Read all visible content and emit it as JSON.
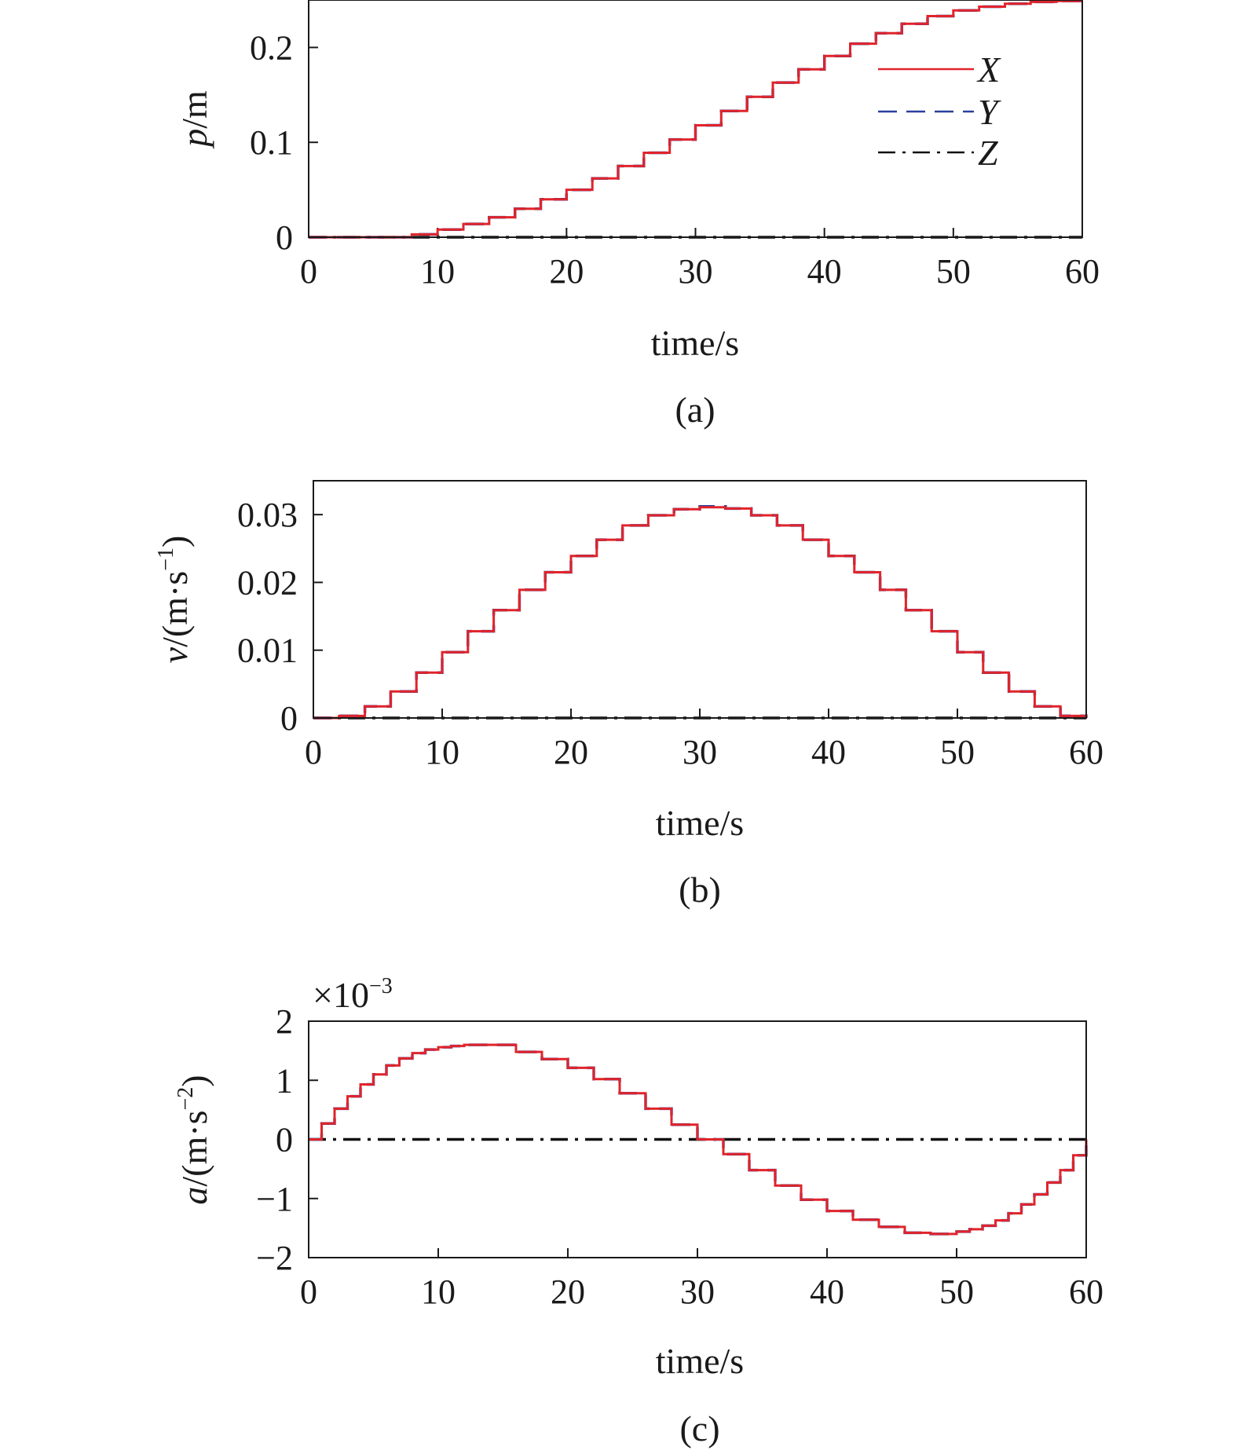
{
  "colors": {
    "X": "#e0242b",
    "Y": "#2a3f9e",
    "Z": "#111111"
  },
  "chart_data": [
    {
      "type": "line",
      "panel_label": "(a)",
      "ylabel": {
        "var": "p",
        "rest": "/m"
      },
      "xlabel": "time/s",
      "xlim": [
        0,
        60
      ],
      "ylim": [
        0,
        0.25
      ],
      "xticks": [
        0,
        10,
        20,
        30,
        40,
        50,
        60
      ],
      "xtick_labels": [
        "0",
        "10",
        "20",
        "30",
        "40",
        "50",
        "60"
      ],
      "yticks": [
        0,
        0.1,
        0.2
      ],
      "ytick_labels": [
        "0",
        "0.1",
        "0.2"
      ],
      "grid": false,
      "legend": {
        "position": "top-right",
        "entries": [
          "X",
          "Y",
          "Z"
        ]
      },
      "series": [
        {
          "name": "X",
          "style": "solid",
          "stepped": true,
          "x": [
            0,
            6,
            8,
            10,
            12,
            14,
            16,
            18,
            20,
            22,
            24,
            26,
            28,
            30,
            32,
            34,
            36,
            38,
            40,
            42,
            44,
            46,
            48,
            50,
            52,
            54,
            56,
            58,
            60
          ],
          "y": [
            0,
            0,
            0.003,
            0.008,
            0.014,
            0.021,
            0.03,
            0.04,
            0.05,
            0.062,
            0.075,
            0.089,
            0.103,
            0.118,
            0.133,
            0.148,
            0.163,
            0.177,
            0.191,
            0.204,
            0.215,
            0.225,
            0.233,
            0.239,
            0.243,
            0.246,
            0.248,
            0.249,
            0.249
          ]
        },
        {
          "name": "Y",
          "style": "dashed",
          "stepped": true,
          "x": [
            0,
            6,
            8,
            10,
            12,
            14,
            16,
            18,
            20,
            22,
            24,
            26,
            28,
            30,
            32,
            34,
            36,
            38,
            40,
            42,
            44,
            46,
            48,
            50,
            52,
            54,
            56,
            58,
            60
          ],
          "y": [
            0,
            0,
            0.003,
            0.008,
            0.014,
            0.021,
            0.03,
            0.04,
            0.05,
            0.062,
            0.075,
            0.089,
            0.103,
            0.118,
            0.133,
            0.148,
            0.163,
            0.177,
            0.191,
            0.204,
            0.215,
            0.225,
            0.233,
            0.239,
            0.243,
            0.246,
            0.248,
            0.249,
            0.249
          ]
        },
        {
          "name": "Z",
          "style": "dashdot",
          "stepped": false,
          "x": [
            0,
            60
          ],
          "y": [
            0,
            0
          ]
        }
      ]
    },
    {
      "type": "line",
      "panel_label": "(b)",
      "ylabel": {
        "var": "v",
        "rest": "/(m·s",
        "sup": "−1",
        "close": ")"
      },
      "xlabel": "time/s",
      "xlim": [
        0,
        60
      ],
      "ylim": [
        0,
        0.035
      ],
      "xticks": [
        0,
        10,
        20,
        30,
        40,
        50,
        60
      ],
      "xtick_labels": [
        "0",
        "10",
        "20",
        "30",
        "40",
        "50",
        "60"
      ],
      "yticks": [
        0,
        0.01,
        0.02,
        0.03
      ],
      "ytick_labels": [
        "0",
        "0.01",
        "0.02",
        "0.03"
      ],
      "grid": false,
      "series": [
        {
          "name": "X",
          "style": "solid",
          "stepped": true,
          "x": [
            0,
            2,
            4,
            6,
            8,
            10,
            12,
            14,
            16,
            18,
            20,
            22,
            24,
            26,
            28,
            30,
            32,
            34,
            36,
            38,
            40,
            42,
            44,
            46,
            48,
            50,
            52,
            54,
            56,
            58,
            60
          ],
          "y": [
            0,
            0.0003,
            0.0017,
            0.0039,
            0.0067,
            0.0097,
            0.0128,
            0.0159,
            0.0189,
            0.0215,
            0.0239,
            0.0263,
            0.0284,
            0.0299,
            0.0308,
            0.0311,
            0.0309,
            0.0299,
            0.0284,
            0.0263,
            0.0239,
            0.0215,
            0.0189,
            0.0159,
            0.0128,
            0.0097,
            0.0067,
            0.0039,
            0.0017,
            0.0003,
            0
          ]
        },
        {
          "name": "Y",
          "style": "dashed",
          "stepped": true,
          "x": [
            0,
            2,
            4,
            6,
            8,
            10,
            12,
            14,
            16,
            18,
            20,
            22,
            24,
            26,
            28,
            30,
            32,
            34,
            36,
            38,
            40,
            42,
            44,
            46,
            48,
            50,
            52,
            54,
            56,
            58,
            60
          ],
          "y": [
            0,
            0.0003,
            0.0017,
            0.0039,
            0.0067,
            0.0097,
            0.0128,
            0.0159,
            0.0189,
            0.0215,
            0.0239,
            0.0263,
            0.0284,
            0.0299,
            0.0308,
            0.0312,
            0.0309,
            0.0299,
            0.0284,
            0.0263,
            0.0239,
            0.0215,
            0.0189,
            0.0159,
            0.0128,
            0.0097,
            0.0067,
            0.0039,
            0.0017,
            0.0003,
            0
          ]
        },
        {
          "name": "Z",
          "style": "dashdot",
          "stepped": false,
          "x": [
            0,
            60
          ],
          "y": [
            0,
            0
          ]
        }
      ]
    },
    {
      "type": "line",
      "panel_label": "(c)",
      "ylabel": {
        "var": "a",
        "rest": "/(m·s",
        "sup": "−2",
        "close": ")"
      },
      "xlabel": "time/s",
      "scale_note": {
        "base": "×10",
        "sup": "−3"
      },
      "xlim": [
        0,
        60
      ],
      "ylim": [
        -2,
        2
      ],
      "xticks": [
        0,
        10,
        20,
        30,
        40,
        50,
        60
      ],
      "xtick_labels": [
        "0",
        "10",
        "20",
        "30",
        "40",
        "50",
        "60"
      ],
      "yticks": [
        -2,
        -1,
        0,
        1,
        2
      ],
      "ytick_labels": [
        "−2",
        "−1",
        "0",
        "1",
        "2"
      ],
      "grid": false,
      "series": [
        {
          "name": "X",
          "style": "solid",
          "stepped": true,
          "x": [
            0,
            1,
            2,
            3,
            4,
            5,
            6,
            7,
            8,
            9,
            10,
            11,
            12,
            14,
            16,
            18,
            20,
            22,
            24,
            26,
            28,
            30,
            32,
            34,
            36,
            38,
            40,
            42,
            44,
            46,
            48,
            49,
            50,
            51,
            52,
            53,
            54,
            55,
            56,
            57,
            58,
            59,
            60
          ],
          "y": [
            0,
            0.27,
            0.52,
            0.73,
            0.93,
            1.1,
            1.25,
            1.37,
            1.46,
            1.52,
            1.56,
            1.58,
            1.6,
            1.6,
            1.48,
            1.36,
            1.21,
            1.02,
            0.78,
            0.52,
            0.25,
            0,
            -0.25,
            -0.52,
            -0.78,
            -1.02,
            -1.21,
            -1.36,
            -1.48,
            -1.58,
            -1.6,
            -1.6,
            -1.56,
            -1.52,
            -1.46,
            -1.37,
            -1.25,
            -1.1,
            -0.93,
            -0.73,
            -0.52,
            -0.27,
            0
          ]
        },
        {
          "name": "Y",
          "style": "dashed",
          "stepped": true,
          "x": [
            0,
            1,
            2,
            3,
            4,
            5,
            6,
            7,
            8,
            9,
            10,
            11,
            12,
            14,
            16,
            18,
            20,
            22,
            24,
            26,
            28,
            30,
            32,
            34,
            36,
            38,
            40,
            42,
            44,
            46,
            48,
            49,
            50,
            51,
            52,
            53,
            54,
            55,
            56,
            57,
            58,
            59,
            60
          ],
          "y": [
            0,
            0.27,
            0.52,
            0.73,
            0.93,
            1.1,
            1.25,
            1.37,
            1.46,
            1.52,
            1.56,
            1.58,
            1.6,
            1.6,
            1.48,
            1.36,
            1.21,
            1.02,
            0.78,
            0.52,
            0.25,
            0,
            -0.25,
            -0.52,
            -0.78,
            -1.02,
            -1.21,
            -1.36,
            -1.48,
            -1.58,
            -1.6,
            -1.6,
            -1.56,
            -1.52,
            -1.46,
            -1.37,
            -1.25,
            -1.1,
            -0.93,
            -0.73,
            -0.52,
            -0.27,
            0
          ]
        },
        {
          "name": "Z",
          "style": "dashdot",
          "stepped": false,
          "x": [
            0,
            60
          ],
          "y": [
            0,
            0
          ]
        }
      ]
    }
  ]
}
